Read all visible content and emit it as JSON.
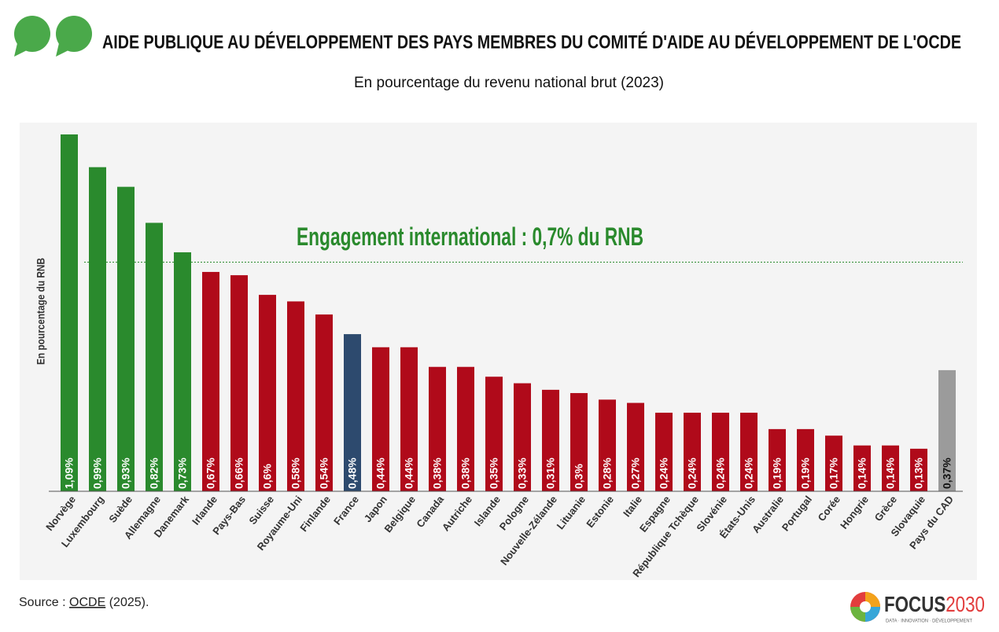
{
  "chart_data": {
    "type": "bar",
    "title": "AIDE PUBLIQUE AU DÉVELOPPEMENT DES PAYS MEMBRES DU COMITÉ D'AIDE AU DÉVELOPPEMENT DE L'OCDE",
    "subtitle": "En pourcentage du revenu national brut (2023)",
    "y_label": "En pourcentage du RNB",
    "categories": [
      "Norvège",
      "Luxembourg",
      "Suède",
      "Allemagne",
      "Danemark",
      "Irlande",
      "Pays-Bas",
      "Suisse",
      "Royaume-Uni",
      "Finlande",
      "France",
      "Japon",
      "Belgique",
      "Canada",
      "Autriche",
      "Islande",
      "Pologne",
      "Nouvelle-Zélande",
      "Lituanie",
      "Estonie",
      "Italie",
      "Espagne",
      "République Tchèque",
      "Slovénie",
      "États-Unis",
      "Australie",
      "Portugal",
      "Corée",
      "Hongrie",
      "Grèce",
      "Slovaquie",
      "Pays du CAD"
    ],
    "values": [
      1.09,
      0.99,
      0.93,
      0.82,
      0.73,
      0.67,
      0.66,
      0.6,
      0.58,
      0.54,
      0.48,
      0.44,
      0.44,
      0.38,
      0.38,
      0.35,
      0.33,
      0.31,
      0.3,
      0.28,
      0.27,
      0.24,
      0.24,
      0.24,
      0.24,
      0.19,
      0.19,
      0.17,
      0.14,
      0.14,
      0.13,
      0.37
    ],
    "value_labels": [
      "1,09%",
      "0,99%",
      "0,93%",
      "0,82%",
      "0,73%",
      "0,67%",
      "0,66%",
      "0,6%",
      "0,58%",
      "0,54%",
      "0,48%",
      "0,44%",
      "0,44%",
      "0,38%",
      "0,38%",
      "0,35%",
      "0,33%",
      "0,31%",
      "0,3%",
      "0,28%",
      "0,27%",
      "0,24%",
      "0,24%",
      "0,24%",
      "0,24%",
      "0,19%",
      "0,19%",
      "0,17%",
      "0,14%",
      "0,14%",
      "0,13%",
      "0,37%"
    ],
    "colors": [
      "#2a8a2d",
      "#2a8a2d",
      "#2a8a2d",
      "#2a8a2d",
      "#2a8a2d",
      "#b00a1a",
      "#b00a1a",
      "#b00a1a",
      "#b00a1a",
      "#b00a1a",
      "#2d4a6e",
      "#b00a1a",
      "#b00a1a",
      "#b00a1a",
      "#b00a1a",
      "#b00a1a",
      "#b00a1a",
      "#b00a1a",
      "#b00a1a",
      "#b00a1a",
      "#b00a1a",
      "#b00a1a",
      "#b00a1a",
      "#b00a1a",
      "#b00a1a",
      "#b00a1a",
      "#b00a1a",
      "#b00a1a",
      "#b00a1a",
      "#b00a1a",
      "#b00a1a",
      "#9b9b9b"
    ],
    "ylim": [
      0,
      1.12
    ],
    "reference_line": {
      "value": 0.7,
      "label": "Engagement international : 0,7% du RNB",
      "color": "#2a8a2d"
    },
    "source": {
      "prefix": "Source : ",
      "link": "OCDE",
      "suffix": " (2025)."
    },
    "logo": {
      "name": "FOCUS",
      "year": "2030",
      "tagline": "DATA · INNOVATION · DÉVELOPPEMENT"
    }
  }
}
